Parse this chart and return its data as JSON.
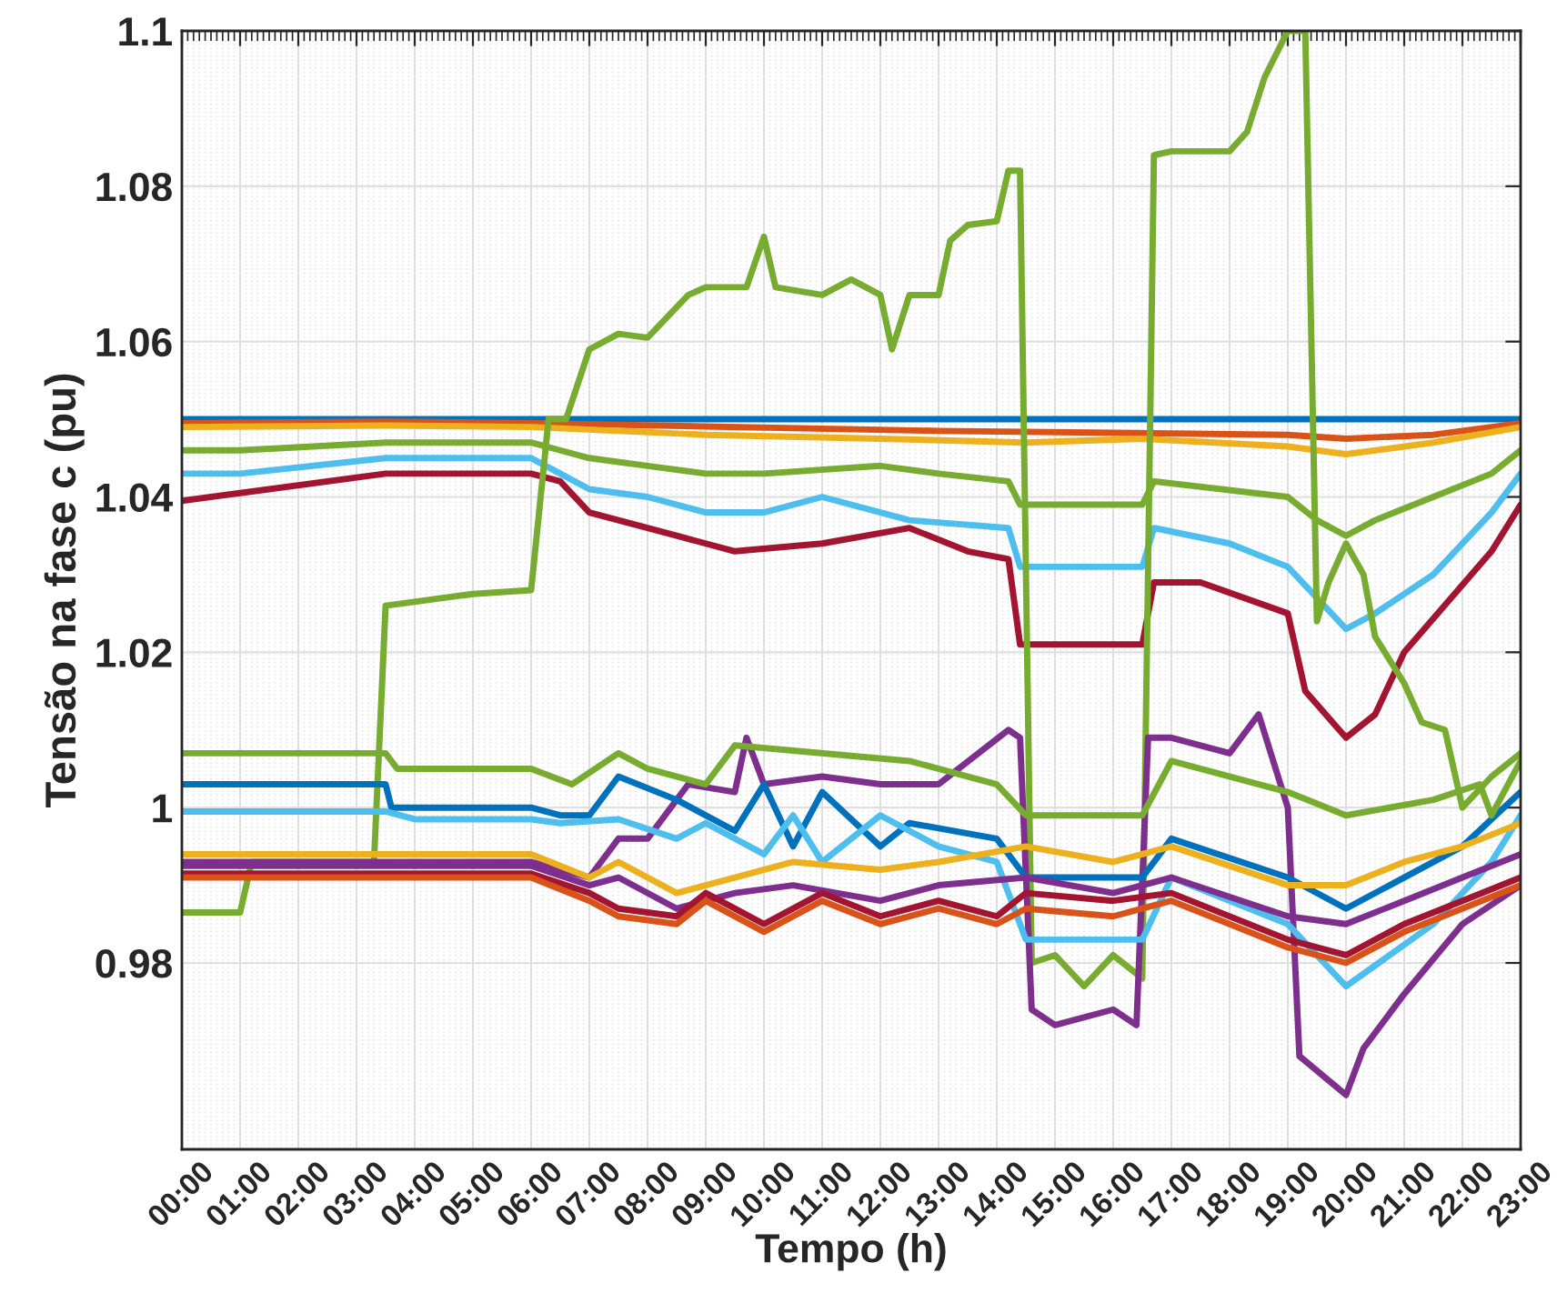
{
  "chart_data": {
    "type": "line",
    "xlabel": "Tempo (h)",
    "ylabel": "Tensão na fase c (pu)",
    "xlim": [
      0,
      23
    ],
    "ylim": [
      0.956,
      1.1
    ],
    "yticks": [
      0.98,
      1,
      1.02,
      1.04,
      1.06,
      1.08,
      1.1
    ],
    "xticks": [
      {
        "value": 0,
        "label": "00:00"
      },
      {
        "value": 1,
        "label": "01:00"
      },
      {
        "value": 2,
        "label": "02:00"
      },
      {
        "value": 3,
        "label": "03:00"
      },
      {
        "value": 4,
        "label": "04:00"
      },
      {
        "value": 5,
        "label": "05:00"
      },
      {
        "value": 6,
        "label": "06:00"
      },
      {
        "value": 7,
        "label": "07:00"
      },
      {
        "value": 8,
        "label": "08:00"
      },
      {
        "value": 9,
        "label": "09:00"
      },
      {
        "value": 10,
        "label": "10:00"
      },
      {
        "value": 11,
        "label": "11:00"
      },
      {
        "value": 12,
        "label": "12:00"
      },
      {
        "value": 13,
        "label": "13:00"
      },
      {
        "value": 14,
        "label": "14:00"
      },
      {
        "value": 15,
        "label": "15:00"
      },
      {
        "value": 16,
        "label": "16:00"
      },
      {
        "value": 17,
        "label": "17:00"
      },
      {
        "value": 18,
        "label": "18:00"
      },
      {
        "value": 19,
        "label": "19:00"
      },
      {
        "value": 20,
        "label": "20:00"
      },
      {
        "value": 21,
        "label": "21:00"
      },
      {
        "value": 22,
        "label": "22:00"
      },
      {
        "value": 23,
        "label": "23:00"
      }
    ],
    "grid": true,
    "legend": false,
    "series": [
      {
        "color": "#0072bd",
        "x": [
          0,
          23
        ],
        "values": [
          1.05,
          1.05
        ]
      },
      {
        "color": "#d95319",
        "x": [
          0,
          3.5,
          6,
          13,
          19,
          20,
          21.5,
          23
        ],
        "values": [
          1.0495,
          1.0497,
          1.0495,
          1.0485,
          1.048,
          1.0475,
          1.048,
          1.0495
        ]
      },
      {
        "color": "#edb120",
        "x": [
          0,
          3.5,
          6,
          9,
          12,
          14.5,
          16.5,
          19,
          20,
          21.5,
          23
        ],
        "values": [
          1.049,
          1.0492,
          1.049,
          1.048,
          1.0475,
          1.047,
          1.0475,
          1.0465,
          1.0455,
          1.047,
          1.049
        ]
      },
      {
        "color": "#77ac30",
        "x": [
          0,
          1,
          3.5,
          6,
          6.5,
          7,
          8,
          9,
          10,
          12,
          13,
          14.2,
          14.4,
          16.5,
          16.7,
          19,
          19.5,
          20,
          20.5,
          21.5,
          22.5,
          23
        ],
        "values": [
          1.046,
          1.046,
          1.047,
          1.047,
          1.046,
          1.045,
          1.044,
          1.043,
          1.043,
          1.044,
          1.043,
          1.042,
          1.039,
          1.039,
          1.042,
          1.04,
          1.037,
          1.035,
          1.037,
          1.04,
          1.043,
          1.046
        ]
      },
      {
        "color": "#4dbeee",
        "x": [
          0,
          1,
          3.5,
          6,
          6.5,
          7,
          8,
          9,
          10,
          11,
          12.5,
          14.2,
          14.4,
          16.5,
          16.7,
          18,
          19,
          20,
          20.5,
          21.5,
          22.5,
          23
        ],
        "values": [
          1.043,
          1.043,
          1.045,
          1.045,
          1.043,
          1.041,
          1.04,
          1.038,
          1.038,
          1.04,
          1.037,
          1.036,
          1.031,
          1.031,
          1.036,
          1.034,
          1.031,
          1.023,
          1.025,
          1.03,
          1.038,
          1.043
        ]
      },
      {
        "color": "#a2142f",
        "x": [
          0,
          1,
          3.5,
          6,
          6.5,
          7,
          7.5,
          8.5,
          9.5,
          11,
          12.5,
          13.5,
          14.2,
          14.4,
          16.5,
          16.7,
          17.5,
          19,
          19.3,
          20,
          20.5,
          21,
          22.5,
          23
        ],
        "values": [
          1.0395,
          1.0405,
          1.043,
          1.043,
          1.042,
          1.038,
          1.037,
          1.035,
          1.033,
          1.034,
          1.036,
          1.033,
          1.032,
          1.021,
          1.021,
          1.029,
          1.029,
          1.025,
          1.015,
          1.009,
          1.012,
          1.02,
          1.033,
          1.039
        ]
      },
      {
        "color": "#77ac30",
        "x": [
          0,
          1,
          1.2,
          3.3,
          3.5,
          5,
          6,
          6.3,
          6.6,
          7,
          7.5,
          8,
          8.7,
          9,
          9.7,
          10,
          10.2,
          11,
          11.5,
          12,
          12.2,
          12.5,
          13,
          13.2,
          13.5,
          14,
          14.2,
          14.4,
          14.6,
          15,
          15.5,
          16,
          16.5,
          16.7,
          17,
          18,
          18.3,
          18.6,
          19,
          19.3,
          19.5,
          19.7,
          20,
          20.3,
          20.5,
          21,
          21.3,
          21.7,
          22,
          22.5,
          23
        ],
        "values": [
          0.9865,
          0.9865,
          0.993,
          0.993,
          1.026,
          1.0275,
          1.028,
          1.05,
          1.05,
          1.059,
          1.061,
          1.0605,
          1.066,
          1.067,
          1.067,
          1.0735,
          1.067,
          1.066,
          1.068,
          1.066,
          1.059,
          1.066,
          1.066,
          1.073,
          1.075,
          1.0755,
          1.082,
          1.082,
          0.98,
          0.981,
          0.977,
          0.981,
          0.978,
          1.084,
          1.0845,
          1.0845,
          1.087,
          1.094,
          1.1,
          1.1,
          1.024,
          1.029,
          1.034,
          1.03,
          1.022,
          1.016,
          1.011,
          1.01,
          1.0,
          1.004,
          1.007
        ]
      },
      {
        "color": "#7e2f8e",
        "x": [
          0,
          6,
          7,
          7.5,
          8,
          8.7,
          9.5,
          9.7,
          10,
          11,
          12,
          13,
          14.2,
          14.4,
          14.6,
          15,
          16,
          16.4,
          16.6,
          17,
          18,
          18.5,
          19,
          19.2,
          20,
          20.3,
          21,
          22,
          23
        ],
        "values": [
          0.993,
          0.993,
          0.991,
          0.996,
          0.996,
          1.003,
          1.002,
          1.009,
          1.003,
          1.004,
          1.003,
          1.003,
          1.01,
          1.009,
          0.974,
          0.972,
          0.974,
          0.972,
          1.009,
          1.009,
          1.007,
          1.012,
          1.0,
          0.968,
          0.963,
          0.969,
          0.976,
          0.985,
          0.99
        ]
      },
      {
        "color": "#0072bd",
        "x": [
          0,
          3.5,
          3.6,
          6,
          6.5,
          7,
          7.5,
          8.5,
          9.5,
          10,
          10.5,
          11,
          12,
          12.5,
          14,
          14.5,
          16.5,
          17,
          19,
          20,
          22,
          23
        ],
        "values": [
          1.003,
          1.003,
          1.0,
          1.0,
          0.999,
          0.999,
          1.004,
          1.001,
          0.997,
          1.003,
          0.995,
          1.002,
          0.995,
          0.998,
          0.996,
          0.991,
          0.991,
          0.996,
          0.991,
          0.987,
          0.995,
          1.002
        ]
      },
      {
        "color": "#77ac30",
        "x": [
          0,
          3.5,
          3.7,
          6,
          6.7,
          7.5,
          8,
          9,
          9.5,
          12.5,
          14,
          14.5,
          16.5,
          17,
          19,
          20,
          21.5,
          22.3,
          22.5,
          23
        ],
        "values": [
          1.007,
          1.007,
          1.005,
          1.005,
          1.003,
          1.007,
          1.005,
          1.003,
          1.008,
          1.006,
          1.003,
          0.999,
          0.999,
          1.006,
          1.002,
          0.999,
          1.001,
          1.003,
          0.999,
          1.006
        ]
      },
      {
        "color": "#4dbeee",
        "x": [
          0,
          3.5,
          4,
          6,
          6.5,
          7.5,
          8.5,
          9,
          10,
          10.5,
          11,
          12,
          13,
          14,
          14.5,
          16.5,
          17,
          19,
          20,
          21.5,
          22.5,
          23
        ],
        "values": [
          0.9995,
          0.9995,
          0.9985,
          0.9985,
          0.998,
          0.9985,
          0.996,
          0.998,
          0.994,
          0.999,
          0.993,
          0.999,
          0.995,
          0.993,
          0.983,
          0.983,
          0.991,
          0.985,
          0.977,
          0.985,
          0.993,
          0.999
        ]
      },
      {
        "color": "#edb120",
        "x": [
          0,
          6,
          7,
          7.5,
          8.5,
          9.5,
          10.5,
          12,
          13,
          14.5,
          16,
          17,
          19,
          20,
          21,
          22,
          23
        ],
        "values": [
          0.994,
          0.994,
          0.991,
          0.993,
          0.989,
          0.991,
          0.993,
          0.992,
          0.993,
          0.995,
          0.993,
          0.995,
          0.99,
          0.99,
          0.993,
          0.995,
          0.998
        ]
      },
      {
        "color": "#7e2f8e",
        "x": [
          0,
          6,
          7,
          7.5,
          8.5,
          9.5,
          10.5,
          12,
          13,
          14.5,
          16,
          17,
          19,
          20,
          21,
          22,
          23
        ],
        "values": [
          0.9925,
          0.9925,
          0.99,
          0.991,
          0.987,
          0.989,
          0.99,
          0.988,
          0.99,
          0.991,
          0.989,
          0.991,
          0.986,
          0.985,
          0.988,
          0.991,
          0.994
        ]
      },
      {
        "color": "#a2142f",
        "x": [
          0,
          6,
          7,
          7.5,
          8.5,
          9,
          10,
          11,
          12,
          13,
          14,
          14.5,
          16,
          17,
          19,
          20,
          21,
          22,
          23
        ],
        "values": [
          0.9915,
          0.9915,
          0.989,
          0.987,
          0.986,
          0.989,
          0.985,
          0.989,
          0.986,
          0.988,
          0.986,
          0.989,
          0.988,
          0.989,
          0.983,
          0.981,
          0.985,
          0.988,
          0.991
        ]
      },
      {
        "color": "#d95319",
        "x": [
          0,
          6,
          7,
          7.5,
          8.5,
          9,
          10,
          11,
          12,
          13,
          14,
          14.5,
          16,
          17,
          19,
          20,
          21,
          22,
          23
        ],
        "values": [
          0.991,
          0.991,
          0.988,
          0.986,
          0.985,
          0.988,
          0.984,
          0.988,
          0.985,
          0.987,
          0.985,
          0.987,
          0.986,
          0.988,
          0.982,
          0.98,
          0.984,
          0.987,
          0.99
        ]
      }
    ]
  }
}
